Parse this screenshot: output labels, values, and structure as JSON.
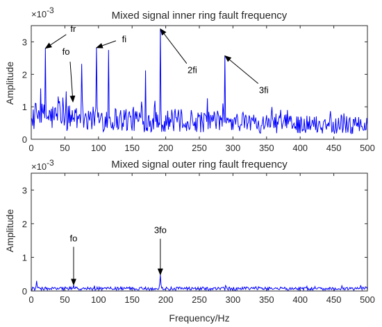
{
  "chart_data": [
    {
      "type": "line",
      "title": "Mixed signal inner ring fault frequency",
      "xlabel": "",
      "ylabel": "Amplitude",
      "xlim": [
        0,
        500
      ],
      "ylim": [
        0,
        3.5
      ],
      "y_multiplier_label": "×10",
      "y_multiplier_exponent": "-3",
      "xticks": [
        "0",
        "50",
        "100",
        "150",
        "200",
        "250",
        "300",
        "350",
        "400",
        "450",
        "500"
      ],
      "yticks": [
        "0",
        "1",
        "2",
        "3"
      ],
      "color": "#0000ff",
      "series": [
        {
          "x_step": 1,
          "peaks": [
            {
              "x": 21,
              "y": 2.8
            },
            {
              "x": 75,
              "y": 2.32
            },
            {
              "x": 97,
              "y": 2.82
            },
            {
              "x": 115,
              "y": 2.75
            },
            {
              "x": 170,
              "y": 2.12
            },
            {
              "x": 192,
              "y": 3.4
            },
            {
              "x": 288,
              "y": 2.57
            }
          ]
        }
      ],
      "annotations": [
        {
          "text": "fr",
          "x": 21,
          "y": 2.8
        },
        {
          "text": "fo",
          "x": 62,
          "y": 1.15
        },
        {
          "text": "fi",
          "x": 97,
          "y": 2.82
        },
        {
          "text": "2fi",
          "x": 192,
          "y": 3.4
        },
        {
          "text": "3fi",
          "x": 288,
          "y": 2.57
        }
      ]
    },
    {
      "type": "line",
      "title": "Mixed signal outer ring fault frequency",
      "xlabel": "Frequency/Hz",
      "ylabel": "Amplitude",
      "xlim": [
        0,
        500
      ],
      "ylim": [
        0,
        3.5
      ],
      "y_multiplier_label": "×10",
      "y_multiplier_exponent": "-3",
      "xticks": [
        "0",
        "50",
        "100",
        "150",
        "200",
        "250",
        "300",
        "350",
        "400",
        "450",
        "500"
      ],
      "yticks": [
        "0",
        "1",
        "2",
        "3"
      ],
      "color": "#0000ff",
      "series": [
        {
          "x_step": 1,
          "peaks": [
            {
              "x": 8,
              "y": 0.3
            },
            {
              "x": 63,
              "y": 0.18
            },
            {
              "x": 192,
              "y": 0.48
            }
          ]
        }
      ],
      "annotations": [
        {
          "text": "fo",
          "x": 63,
          "y": 0.18
        },
        {
          "text": "3fo",
          "x": 192,
          "y": 0.48
        }
      ]
    }
  ]
}
